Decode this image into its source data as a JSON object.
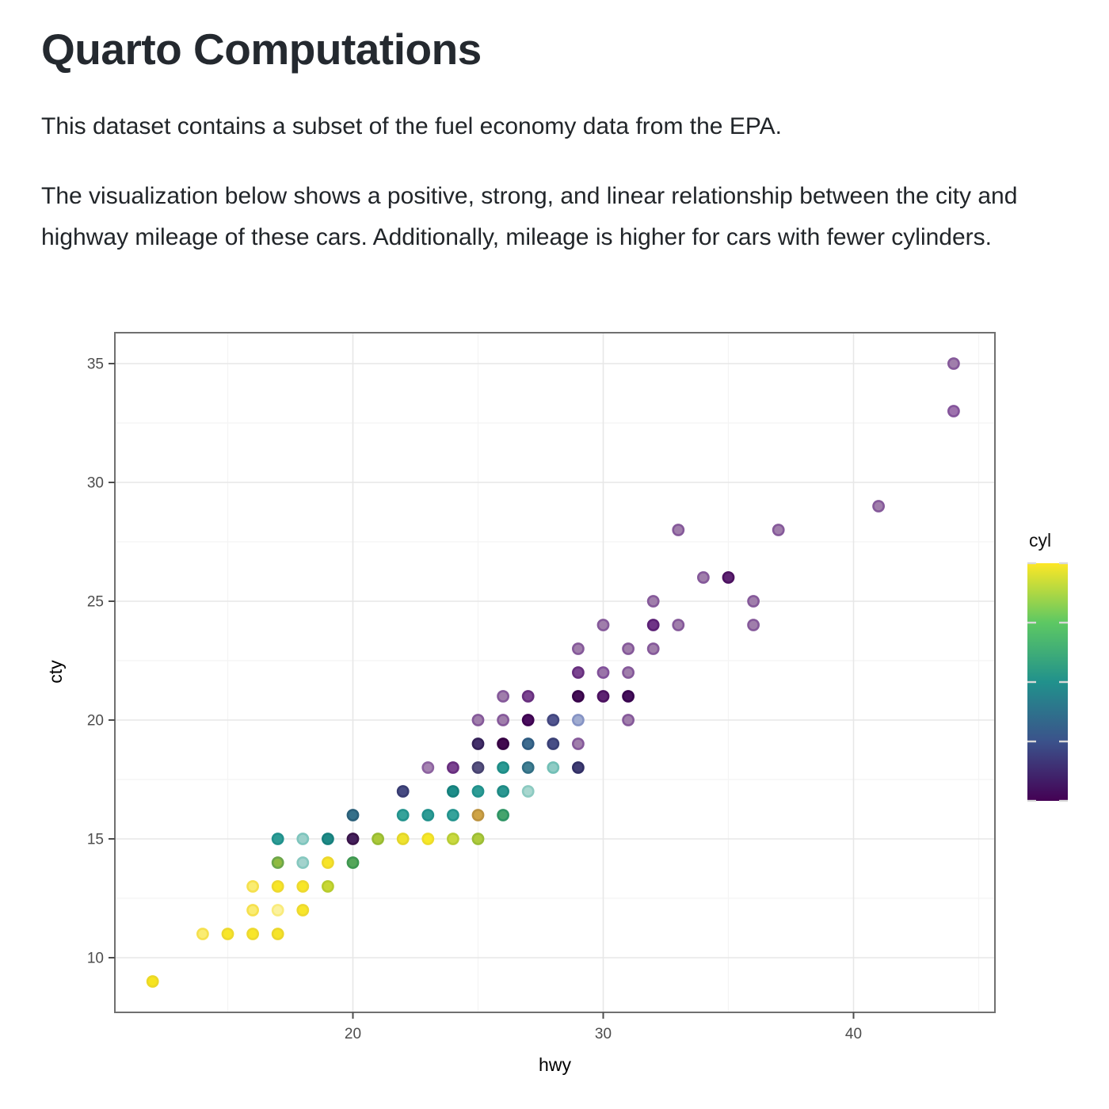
{
  "doc": {
    "title": "Quarto Computations",
    "paragraph1": "This dataset contains a subset of the fuel economy data from the EPA.",
    "paragraph2": "The visualization below shows a positive, strong, and linear relationship between the city and highway mileage of these cars. Additionally, mileage is higher for cars with fewer cylinders."
  },
  "chart_data": {
    "type": "scatter",
    "title": "",
    "xlabel": "hwy",
    "ylabel": "cty",
    "xlim": [
      10.4,
      45.6
    ],
    "ylim": [
      7.7,
      36.3
    ],
    "x_ticks": [
      20,
      30,
      40
    ],
    "y_ticks": [
      10,
      15,
      20,
      25,
      30,
      35
    ],
    "x_minor": [
      15,
      25,
      35,
      45
    ],
    "y_minor": [
      12.5,
      17.5,
      22.5,
      27.5,
      32.5
    ],
    "grid": true,
    "legend": {
      "title": "cyl",
      "position": "right",
      "type": "colorbar",
      "domain": [
        4,
        8
      ],
      "tick_values": [
        4,
        5,
        6,
        7,
        8
      ],
      "colormap": "viridis",
      "colormap_stops_top_to_bottom": [
        "#FDE725",
        "#5DC863",
        "#21918C",
        "#3B528B",
        "#440154"
      ]
    },
    "point_style": {
      "alpha_note": "points drawn with alpha ~0.5; fills below are as-rendered blends",
      "radius_px": 8
    },
    "points": [
      {
        "hwy": 12,
        "cty": 9,
        "cyl": 8,
        "fill": "#F6E41F",
        "rim": "#EBD827"
      },
      {
        "hwy": 14,
        "cty": 11,
        "cyl": 8,
        "fill": "#FAEC72",
        "rim": "#F5E04E"
      },
      {
        "hwy": 15,
        "cty": 11,
        "cyl": 8,
        "fill": "#F8E62A",
        "rim": "#EDD92F"
      },
      {
        "hwy": 16,
        "cty": 11,
        "cyl": 8,
        "fill": "#F8E62A",
        "rim": "#EDD92F"
      },
      {
        "hwy": 17,
        "cty": 11,
        "cyl": 8,
        "fill": "#F6E428",
        "rim": "#EBD72D"
      },
      {
        "hwy": 16,
        "cty": 12,
        "cyl": 8,
        "fill": "#FAEC72",
        "rim": "#F5E04E"
      },
      {
        "hwy": 17,
        "cty": 12,
        "cyl": 8,
        "fill": "#FBF29E",
        "rim": "#F9EB7C"
      },
      {
        "hwy": 18,
        "cty": 12,
        "cyl": 8,
        "fill": "#F8E62A",
        "rim": "#EDD92F"
      },
      {
        "hwy": 16,
        "cty": 13,
        "cyl": 8,
        "fill": "#FAEC72",
        "rim": "#F5E04E"
      },
      {
        "hwy": 17,
        "cty": 13,
        "cyl": 8,
        "fill": "#F8E626",
        "rim": "#EDD92F"
      },
      {
        "hwy": 18,
        "cty": 13,
        "cyl": 8,
        "fill": "#F8E626",
        "rim": "#EDD92F"
      },
      {
        "hwy": 19,
        "cty": 13,
        "cyl": null,
        "fill": "#C8D733",
        "rim": "#B7CB2D"
      },
      {
        "hwy": 17,
        "cty": 14,
        "cyl": null,
        "fill": "#8FBA41",
        "rim": "#6CA64A"
      },
      {
        "hwy": 18,
        "cty": 14,
        "cyl": 6,
        "fill": "#A3D3CD",
        "rim": "#86C8BF"
      },
      {
        "hwy": 19,
        "cty": 14,
        "cyl": 8,
        "fill": "#F7E428",
        "rim": "#ECD72D"
      },
      {
        "hwy": 20,
        "cty": 14,
        "cyl": null,
        "fill": "#55A65A",
        "rim": "#3E9750"
      },
      {
        "hwy": 17,
        "cty": 15,
        "cyl": 6,
        "fill": "#2E9C95",
        "rim": "#21918C"
      },
      {
        "hwy": 18,
        "cty": 15,
        "cyl": 6,
        "fill": "#9BD0CA",
        "rim": "#7EC5BD"
      },
      {
        "hwy": 19,
        "cty": 15,
        "cyl": 6,
        "fill": "#1F8A86",
        "rim": "#17807D"
      },
      {
        "hwy": 20,
        "cty": 15,
        "cyl": null,
        "fill": "#45215C",
        "rim": "#391449"
      },
      {
        "hwy": 21,
        "cty": 15,
        "cyl": null,
        "fill": "#ABC939",
        "rim": "#98BB33"
      },
      {
        "hwy": 22,
        "cty": 15,
        "cyl": 8,
        "fill": "#EFE32E",
        "rim": "#E3D62B"
      },
      {
        "hwy": 23,
        "cty": 15,
        "cyl": 8,
        "fill": "#F7E926",
        "rim": "#EDDC2B"
      },
      {
        "hwy": 24,
        "cty": 15,
        "cyl": null,
        "fill": "#C9D93F",
        "rim": "#B8CC35"
      },
      {
        "hwy": 25,
        "cty": 15,
        "cyl": null,
        "fill": "#AFCB3C",
        "rim": "#9CBD36"
      },
      {
        "hwy": 20,
        "cty": 16,
        "cyl": null,
        "fill": "#35708A",
        "rim": "#2A5F79"
      },
      {
        "hwy": 22,
        "cty": 16,
        "cyl": 6,
        "fill": "#35A39B",
        "rim": "#23938D"
      },
      {
        "hwy": 23,
        "cty": 16,
        "cyl": 6,
        "fill": "#2E9C95",
        "rim": "#21918C"
      },
      {
        "hwy": 24,
        "cty": 16,
        "cyl": 6,
        "fill": "#35A39B",
        "rim": "#23938D"
      },
      {
        "hwy": 25,
        "cty": 16,
        "cyl": null,
        "fill": "#CFA446",
        "rim": "#BC9340"
      },
      {
        "hwy": 26,
        "cty": 16,
        "cyl": null,
        "fill": "#45A46D",
        "rim": "#2E9464"
      },
      {
        "hwy": 22,
        "cty": 17,
        "cyl": null,
        "fill": "#474B82",
        "rim": "#383C72"
      },
      {
        "hwy": 24,
        "cty": 17,
        "cyl": 6,
        "fill": "#1D8D89",
        "rim": "#15807C"
      },
      {
        "hwy": 25,
        "cty": 17,
        "cyl": 6,
        "fill": "#2E9C95",
        "rim": "#21918C"
      },
      {
        "hwy": 26,
        "cty": 17,
        "cyl": 6,
        "fill": "#2B9791",
        "rim": "#1E8A84"
      },
      {
        "hwy": 27,
        "cty": 17,
        "cyl": 6,
        "fill": "#A8D7CF",
        "rim": "#8CCAC1"
      },
      {
        "hwy": 23,
        "cty": 18,
        "cyl": 4,
        "fill": "#A583B1",
        "rim": "#8C62A0"
      },
      {
        "hwy": 24,
        "cty": 18,
        "cyl": 4,
        "fill": "#7B4390",
        "rim": "#672E7E"
      },
      {
        "hwy": 25,
        "cty": 18,
        "cyl": null,
        "fill": "#56517F",
        "rim": "#474270"
      },
      {
        "hwy": 26,
        "cty": 18,
        "cyl": 6,
        "fill": "#2B9A94",
        "rim": "#1E8C86"
      },
      {
        "hwy": 27,
        "cty": 18,
        "cyl": null,
        "fill": "#417F92",
        "rim": "#316E84"
      },
      {
        "hwy": 28,
        "cty": 18,
        "cyl": 6,
        "fill": "#8FCCC5",
        "rim": "#72BFB6"
      },
      {
        "hwy": 29,
        "cty": 18,
        "cyl": null,
        "fill": "#3F3D73",
        "rim": "#312F65"
      },
      {
        "hwy": 25,
        "cty": 19,
        "cyl": null,
        "fill": "#44306B",
        "rim": "#342158"
      },
      {
        "hwy": 26,
        "cty": 19,
        "cyl": 4,
        "fill": "#42094F",
        "rim": "#350043"
      },
      {
        "hwy": 27,
        "cty": 19,
        "cyl": null,
        "fill": "#3E6C8F",
        "rim": "#2E5B81"
      },
      {
        "hwy": 28,
        "cty": 19,
        "cyl": null,
        "fill": "#474E86",
        "rim": "#3A4076"
      },
      {
        "hwy": 29,
        "cty": 19,
        "cyl": 4,
        "fill": "#A07EAB",
        "rim": "#85599A"
      },
      {
        "hwy": 25,
        "cty": 20,
        "cyl": 4,
        "fill": "#A07EAB",
        "rim": "#85599A"
      },
      {
        "hwy": 26,
        "cty": 20,
        "cyl": 4,
        "fill": "#A07EAB",
        "rim": "#85599A"
      },
      {
        "hwy": 27,
        "cty": 20,
        "cyl": 4,
        "fill": "#4A0E5E",
        "rim": "#3D0250"
      },
      {
        "hwy": 28,
        "cty": 20,
        "cyl": null,
        "fill": "#52558F",
        "rim": "#42467F"
      },
      {
        "hwy": 29,
        "cty": 20,
        "cyl": 5,
        "fill": "#9FABD0",
        "rim": "#8593C4"
      },
      {
        "hwy": 31,
        "cty": 20,
        "cyl": 4,
        "fill": "#A07EAB",
        "rim": "#85599A"
      },
      {
        "hwy": 26,
        "cty": 21,
        "cyl": 4,
        "fill": "#A07EAB",
        "rim": "#85599A"
      },
      {
        "hwy": 27,
        "cty": 21,
        "cyl": 4,
        "fill": "#7B4590",
        "rim": "#672F7E"
      },
      {
        "hwy": 29,
        "cty": 21,
        "cyl": 4,
        "fill": "#440F56",
        "rim": "#370249"
      },
      {
        "hwy": 30,
        "cty": 21,
        "cyl": 4,
        "fill": "#5E2472",
        "rim": "#4C1260"
      },
      {
        "hwy": 31,
        "cty": 21,
        "cyl": 4,
        "fill": "#45105B",
        "rim": "#38034E"
      },
      {
        "hwy": 29,
        "cty": 22,
        "cyl": 4,
        "fill": "#7B4590",
        "rim": "#672F7E"
      },
      {
        "hwy": 30,
        "cty": 22,
        "cyl": 4,
        "fill": "#9A74A8",
        "rim": "#81519A"
      },
      {
        "hwy": 31,
        "cty": 22,
        "cyl": 4,
        "fill": "#A07EAB",
        "rim": "#85599A"
      },
      {
        "hwy": 29,
        "cty": 23,
        "cyl": 4,
        "fill": "#A07EAB",
        "rim": "#85599A"
      },
      {
        "hwy": 31,
        "cty": 23,
        "cyl": 4,
        "fill": "#A07EAB",
        "rim": "#85599A"
      },
      {
        "hwy": 32,
        "cty": 23,
        "cyl": 4,
        "fill": "#A07EAB",
        "rim": "#85599A"
      },
      {
        "hwy": 30,
        "cty": 24,
        "cyl": 4,
        "fill": "#A07EAB",
        "rim": "#85599A"
      },
      {
        "hwy": 32,
        "cty": 24,
        "cyl": 4,
        "fill": "#6F3487",
        "rim": "#5B2075"
      },
      {
        "hwy": 33,
        "cty": 24,
        "cyl": 4,
        "fill": "#A07EAB",
        "rim": "#85599A"
      },
      {
        "hwy": 36,
        "cty": 24,
        "cyl": 4,
        "fill": "#A07EAB",
        "rim": "#85599A"
      },
      {
        "hwy": 32,
        "cty": 25,
        "cyl": 4,
        "fill": "#A07EAB",
        "rim": "#85599A"
      },
      {
        "hwy": 36,
        "cty": 25,
        "cyl": 4,
        "fill": "#A07EAB",
        "rim": "#85599A"
      },
      {
        "hwy": 34,
        "cty": 26,
        "cyl": 4,
        "fill": "#A07EAB",
        "rim": "#85599A"
      },
      {
        "hwy": 35,
        "cty": 26,
        "cyl": 4,
        "fill": "#5E2472",
        "rim": "#4C1260"
      },
      {
        "hwy": 33,
        "cty": 28,
        "cyl": 4,
        "fill": "#A07EAB",
        "rim": "#85599A"
      },
      {
        "hwy": 37,
        "cty": 28,
        "cyl": 4,
        "fill": "#A07EAB",
        "rim": "#85599A"
      },
      {
        "hwy": 41,
        "cty": 29,
        "cyl": 4,
        "fill": "#A07EAB",
        "rim": "#85599A"
      },
      {
        "hwy": 44,
        "cty": 33,
        "cyl": 4,
        "fill": "#9E72AD",
        "rim": "#84549B"
      },
      {
        "hwy": 44,
        "cty": 35,
        "cyl": 4,
        "fill": "#A07EAB",
        "rim": "#85599A"
      }
    ],
    "style_colors": {
      "panel_border": "#707070",
      "grid_major": "#E7E7E7",
      "grid_minor": "#F4F4F4",
      "tick_mark": "#4D4D4D",
      "tick_label": "#4D4D4D",
      "axis_title": "#000000",
      "legend_tick": "#D9D9D9"
    }
  }
}
